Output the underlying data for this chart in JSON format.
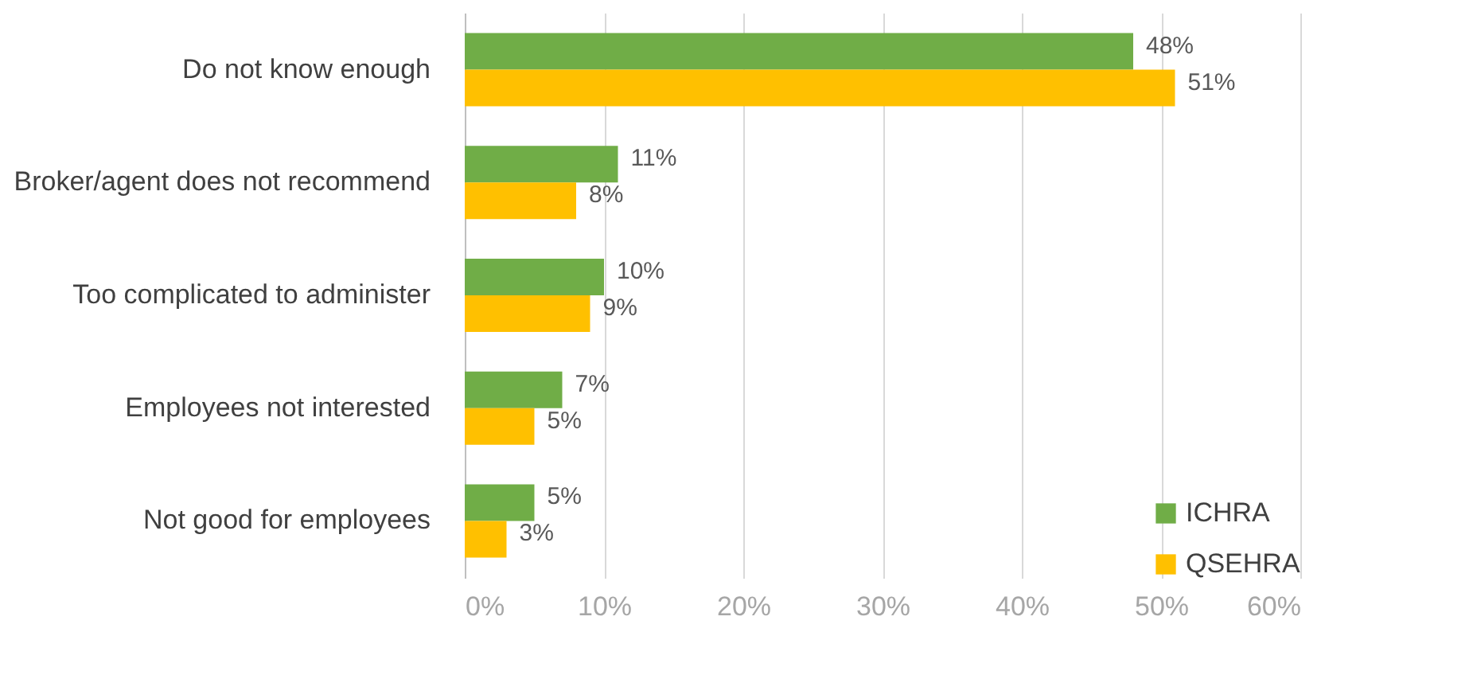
{
  "chart_data": {
    "type": "bar",
    "orientation": "horizontal",
    "categories": [
      "Do not know enough",
      "Broker/agent does not recommend",
      "Too complicated to administer",
      "Employees not interested",
      "Not good for employees"
    ],
    "series": [
      {
        "name": "ICHRA",
        "color": "#70ad47",
        "values": [
          48,
          11,
          10,
          7,
          5
        ],
        "value_labels": [
          "48%",
          "11%",
          "10%",
          "7%",
          "5%"
        ]
      },
      {
        "name": "QSEHRA",
        "color": "#ffc000",
        "values": [
          51,
          8,
          9,
          5,
          3
        ],
        "value_labels": [
          "51%",
          "8%",
          "9%",
          "5%",
          "3%"
        ]
      }
    ],
    "xlim": [
      0,
      60
    ],
    "xticks": [
      {
        "value": 0,
        "label": "0%"
      },
      {
        "value": 10,
        "label": "10%"
      },
      {
        "value": 20,
        "label": "20%"
      },
      {
        "value": 30,
        "label": "30%"
      },
      {
        "value": 40,
        "label": "40%"
      },
      {
        "value": 50,
        "label": "50%"
      },
      {
        "value": 60,
        "label": "60%"
      }
    ],
    "grid": "x",
    "legend": "bottom right"
  }
}
